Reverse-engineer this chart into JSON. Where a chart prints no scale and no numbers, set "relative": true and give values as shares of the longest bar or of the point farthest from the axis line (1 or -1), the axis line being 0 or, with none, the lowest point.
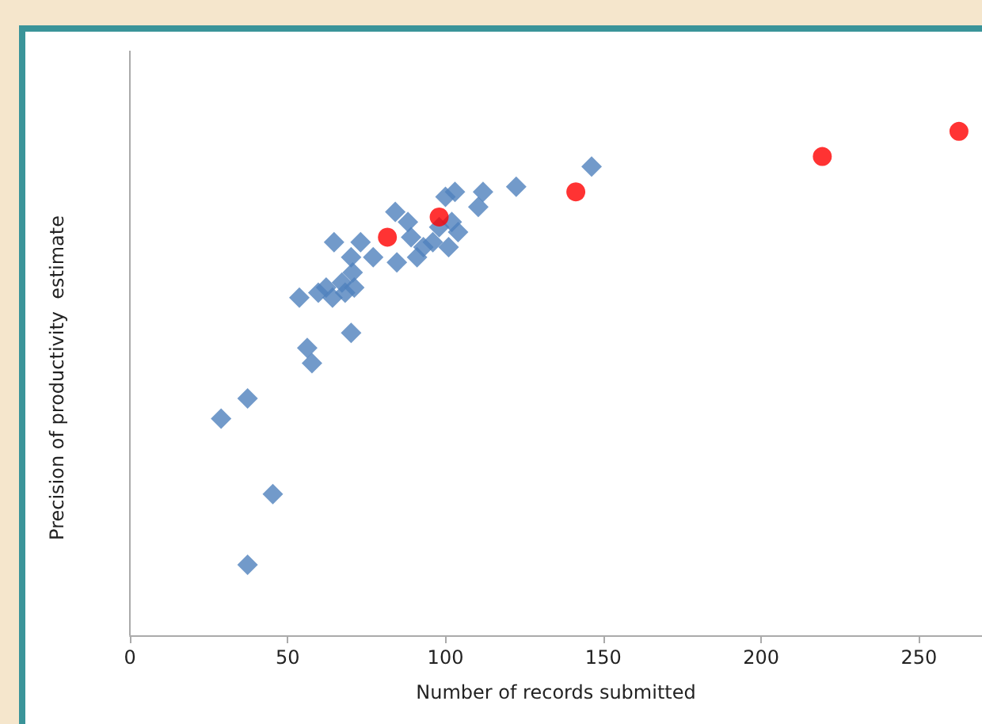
{
  "chart_data": {
    "type": "scatter",
    "xlabel": "Number of records submitted",
    "ylabel": "Precision of productivity  estimate",
    "relative": true,
    "xlim": [
      0,
      270
    ],
    "xticks": [
      0,
      50,
      100,
      150,
      200,
      250
    ],
    "grid": false,
    "series": [
      {
        "color": "#4f81bd",
        "marker": "diamond",
        "x": [
          28.9,
          37.3,
          45.3,
          37.3,
          53.7,
          56.2,
          57.7,
          59.7,
          62.2,
          64.2,
          64.7,
          67.2,
          68.2,
          70.1,
          70.6,
          70.1,
          73.1,
          71.1,
          77.1,
          84.1,
          84.6,
          88.1,
          89.1,
          91.0,
          93.0,
          96.0,
          98.0,
          100.0,
          103.0,
          102.0,
          104.0,
          101.0,
          110.4,
          111.9,
          122.4,
          146.3
        ],
        "values": [
          0.43,
          0.47,
          0.28,
          0.14,
          0.67,
          0.57,
          0.54,
          0.68,
          0.69,
          0.67,
          0.78,
          0.7,
          0.68,
          0.6,
          0.72,
          0.75,
          0.78,
          0.69,
          0.75,
          0.84,
          0.74,
          0.82,
          0.79,
          0.75,
          0.77,
          0.78,
          0.81,
          0.87,
          0.88,
          0.82,
          0.8,
          0.77,
          0.85,
          0.88,
          0.89,
          0.93
        ]
      },
      {
        "color": "#ff0000",
        "marker": "circle",
        "x": [
          81.6,
          98.0,
          141.3,
          219.4,
          262.7
        ],
        "values": [
          0.79,
          0.83,
          0.88,
          0.95,
          1.0
        ]
      }
    ]
  }
}
